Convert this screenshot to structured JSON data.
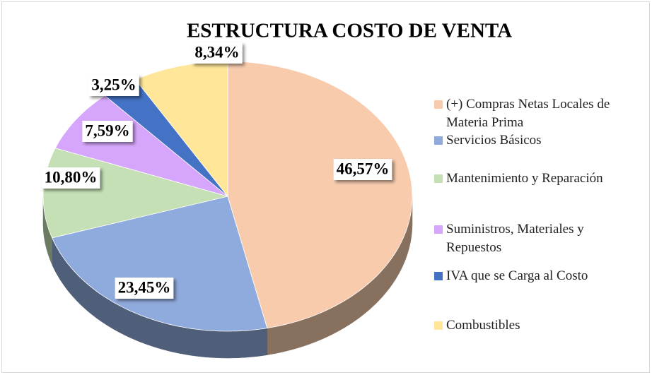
{
  "chart_data": {
    "type": "pie",
    "title": "ESTRUCTURA COSTO DE VENTA",
    "categories": [
      "(+) Compras Netas Locales de Materia Prima",
      "Servicios Básicos",
      "Mantenimiento y Reparación",
      "Suministros, Materiales y Repuestos",
      "IVA que se Carga al Costo",
      "Combustibles"
    ],
    "values": [
      46.57,
      23.45,
      10.8,
      7.59,
      3.25,
      8.34
    ],
    "value_labels": [
      "46,57%",
      "23,45%",
      "10,80%",
      "7,59%",
      "3,25%",
      "8,34%"
    ],
    "colors": [
      "#f8cbad",
      "#8faadc",
      "#c5e0b4",
      "#d5a6fb",
      "#4472c4",
      "#ffe699"
    ],
    "legend": "right"
  }
}
